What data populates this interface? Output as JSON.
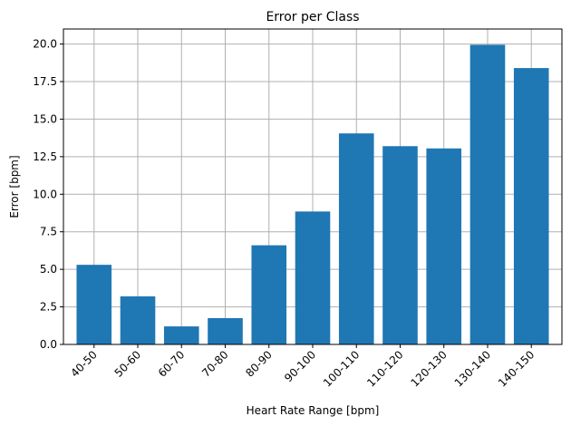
{
  "chart_data": {
    "type": "bar",
    "title": "Error per Class",
    "xlabel": "Heart Rate Range [bpm]",
    "ylabel": "Error [bpm]",
    "categories": [
      "40-50",
      "50-60",
      "60-70",
      "70-80",
      "80-90",
      "90-100",
      "100-110",
      "110-120",
      "120-130",
      "130-140",
      "140-150"
    ],
    "values": [
      5.3,
      3.2,
      1.2,
      1.75,
      6.6,
      8.85,
      14.05,
      13.2,
      13.05,
      19.95,
      18.4
    ],
    "ylim": [
      0,
      21
    ],
    "yticks": [
      0.0,
      2.5,
      5.0,
      7.5,
      10.0,
      12.5,
      15.0,
      17.5,
      20.0
    ],
    "ytick_labels": [
      "0.0",
      "2.5",
      "5.0",
      "7.5",
      "10.0",
      "12.5",
      "15.0",
      "17.5",
      "20.0"
    ],
    "grid": true,
    "bar_color": "#1f77b4",
    "grid_color": "#b0b0b0"
  }
}
